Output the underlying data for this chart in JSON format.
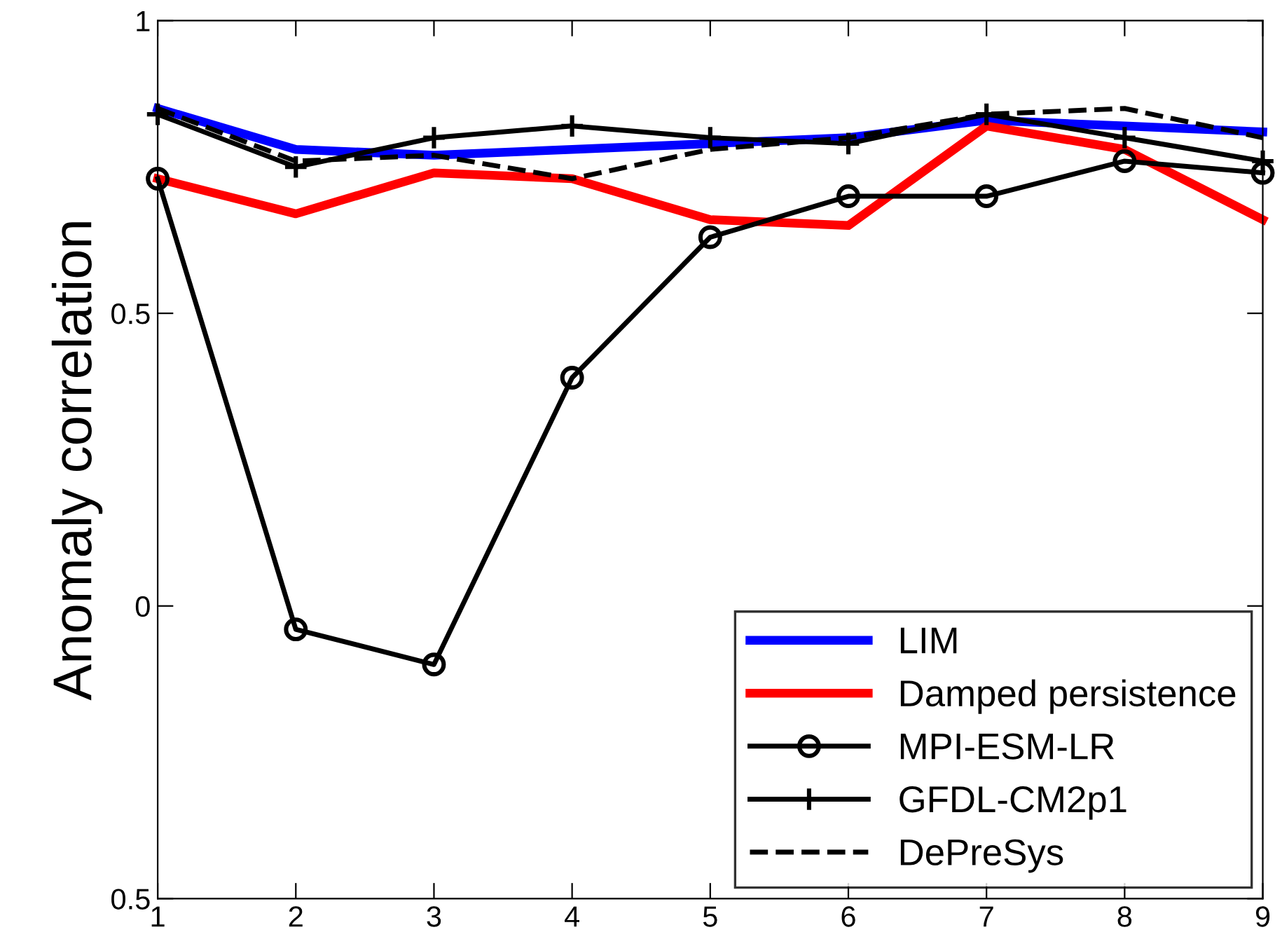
{
  "chart_data": {
    "type": "line",
    "ylabel": "Anomaly correlation",
    "x": [
      1,
      2,
      3,
      4,
      5,
      6,
      7,
      8,
      9
    ],
    "xlim": [
      1,
      9
    ],
    "xticks": [
      1,
      2,
      3,
      4,
      5,
      6,
      7,
      8,
      9
    ],
    "ylim": [
      -0.5,
      1
    ],
    "yticks": [
      {
        "value": -0.5,
        "label": "0.5"
      },
      0,
      0.5,
      1
    ],
    "grid": false,
    "legend": "bottom right",
    "series": [
      {
        "name": "LIM",
        "color": "#0000ff",
        "marker": "none",
        "line_style": "solid",
        "values": [
          0.85,
          0.78,
          0.77,
          0.78,
          0.79,
          0.8,
          0.83,
          0.82,
          0.81
        ]
      },
      {
        "name": "Damped persistence",
        "color": "#ff0000",
        "marker": "none",
        "line_style": "solid",
        "values": [
          0.73,
          0.67,
          0.74,
          0.73,
          0.66,
          0.65,
          0.82,
          0.78,
          0.66
        ]
      },
      {
        "name": "MPI-ESM-LR",
        "color": "#000000",
        "marker": "circle",
        "line_style": "solid",
        "values": [
          0.73,
          -0.04,
          -0.1,
          0.39,
          0.63,
          0.7,
          0.7,
          0.76,
          0.74
        ]
      },
      {
        "name": "GFDL-CM2p1",
        "color": "#000000",
        "marker": "cross",
        "line_style": "solid",
        "values": [
          0.84,
          0.75,
          0.8,
          0.82,
          0.8,
          0.79,
          0.84,
          0.8,
          0.76
        ]
      },
      {
        "name": "DePreSys",
        "color": "#000000",
        "marker": "none",
        "line_style": "dashed",
        "values": [
          0.85,
          0.76,
          0.77,
          0.73,
          0.78,
          0.8,
          0.84,
          0.85,
          0.8
        ]
      }
    ]
  }
}
